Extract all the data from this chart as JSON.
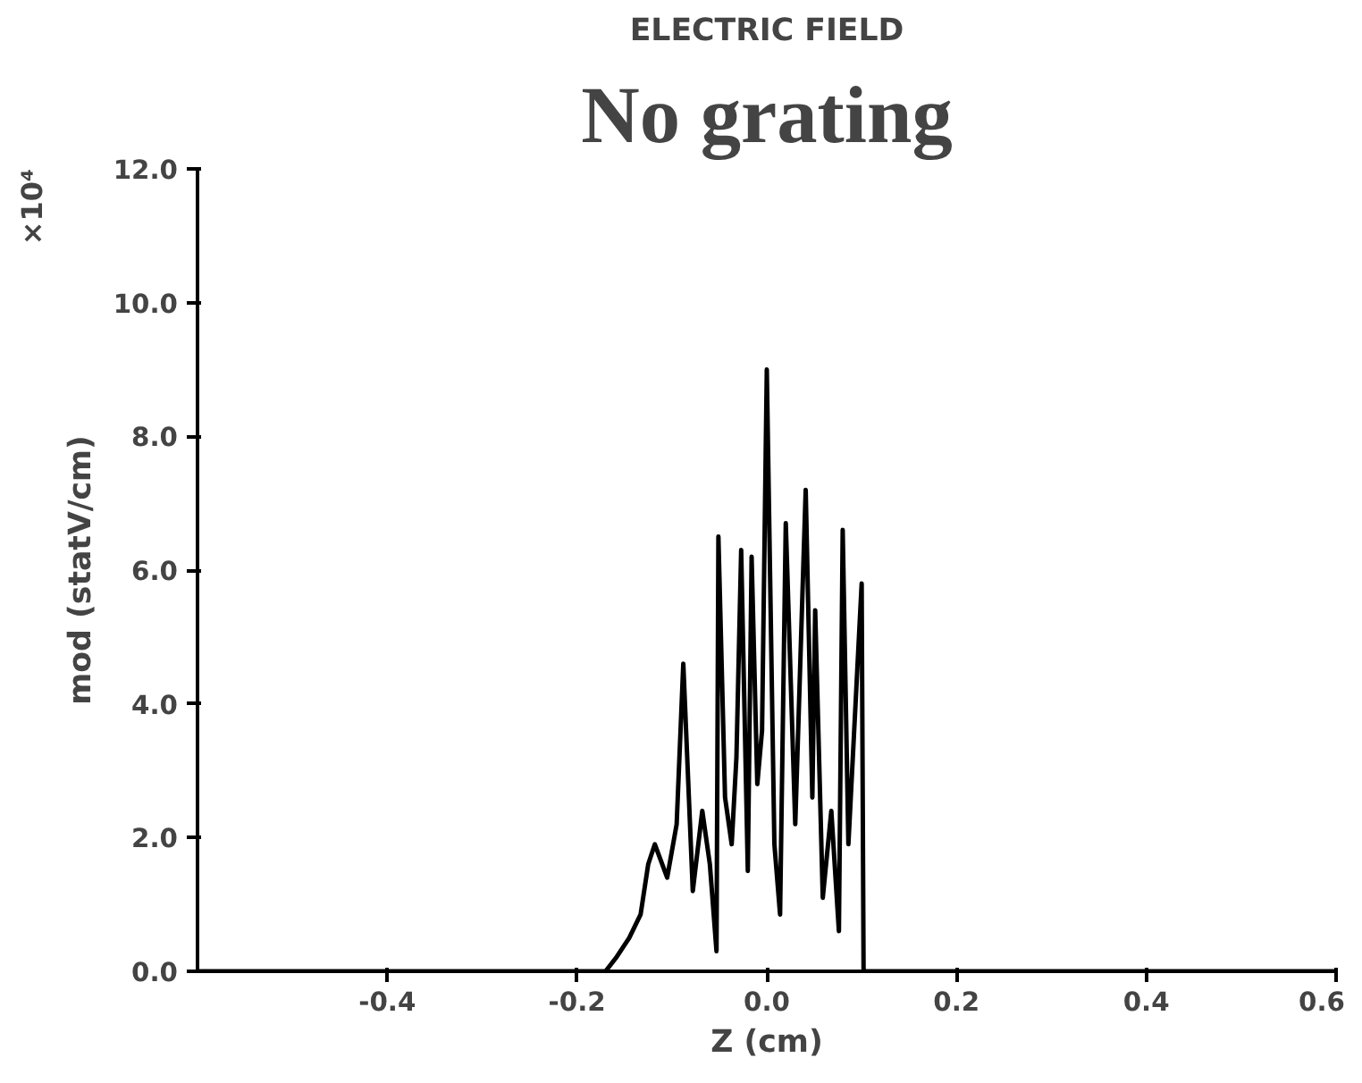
{
  "chart_data": {
    "type": "line",
    "title": "ELECTRIC FIELD",
    "subtitle": "No grating",
    "xlabel": "Z (cm)",
    "ylabel": "mod (statV/cm)",
    "annotations": [
      "×10⁴"
    ],
    "x": [
      -0.6,
      -0.17,
      -0.159,
      -0.145,
      -0.133,
      -0.125,
      -0.118,
      -0.105,
      -0.095,
      -0.088,
      -0.078,
      -0.068,
      -0.06,
      -0.053,
      -0.051,
      -0.044,
      -0.037,
      -0.032,
      -0.027,
      -0.02,
      -0.016,
      -0.01,
      -0.005,
      0.0,
      0.008,
      0.014,
      0.02,
      0.03,
      0.041,
      0.048,
      0.051,
      0.059,
      0.068,
      0.076,
      0.08,
      0.086,
      0.1,
      0.102,
      0.6
    ],
    "series": [
      {
        "color": "#000000",
        "values": [
          0.0,
          0.0,
          0.2,
          0.5,
          0.85,
          1.6,
          1.9,
          1.4,
          2.2,
          4.6,
          1.2,
          2.4,
          1.6,
          0.3,
          6.5,
          2.6,
          1.9,
          3.2,
          6.3,
          1.5,
          6.2,
          2.8,
          3.6,
          9.0,
          1.9,
          0.85,
          6.7,
          2.2,
          7.2,
          2.6,
          5.4,
          1.1,
          2.4,
          0.6,
          6.6,
          1.9,
          5.8,
          0.0,
          0.0
        ]
      }
    ],
    "xlim": [
      -0.6,
      0.6
    ],
    "xticks": [
      -0.4,
      -0.2,
      {
        "value": 0,
        "label": "0.0"
      },
      0.2,
      0.4,
      0.6
    ],
    "ylim": [
      0,
      12
    ],
    "yticks": [
      {
        "value": 0,
        "label": "0.0"
      },
      {
        "value": 2,
        "label": "2.0"
      },
      {
        "value": 4,
        "label": "4.0"
      },
      {
        "value": 6,
        "label": "6.0"
      },
      {
        "value": 8,
        "label": "8.0"
      },
      {
        "value": 10,
        "label": "10.0"
      },
      {
        "value": 12,
        "label": "12.0"
      }
    ],
    "grid": false
  }
}
